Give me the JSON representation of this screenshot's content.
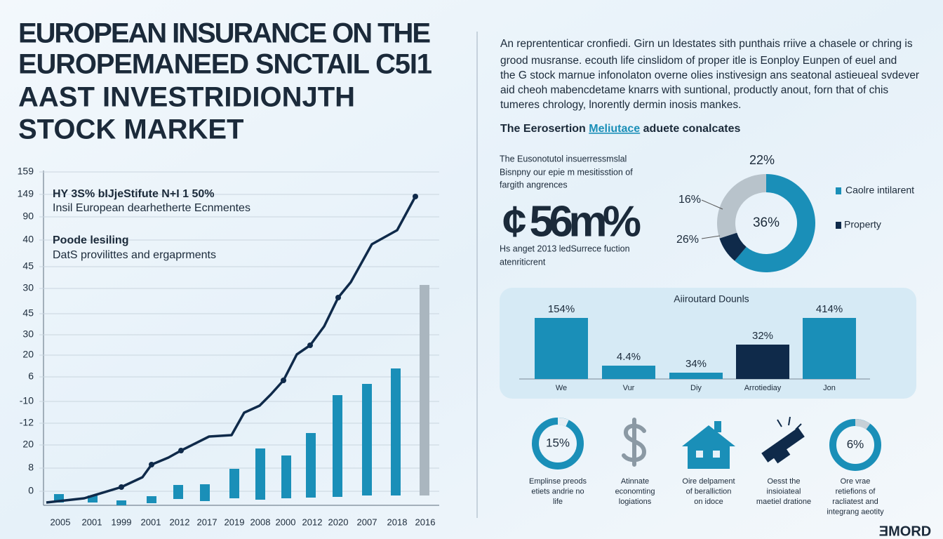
{
  "title": [
    "EUROPEAN INSURANCE ON THE",
    "EUROPEMANEED SNCTAIL C5I1",
    "AAST INVESTRIDIONJTH",
    "STOCK MARKET"
  ],
  "line_chart": {
    "y_labels": [
      159,
      149,
      90,
      40,
      45,
      30,
      45,
      30,
      20,
      6,
      -10,
      -12,
      20,
      8,
      0
    ],
    "x_labels": [
      "2005",
      "2001",
      "1999",
      "2001",
      "2012",
      "2017",
      "2019",
      "2008",
      "2000",
      "2012",
      "2020",
      "2007",
      "2018",
      "2016"
    ],
    "annotation_headline": "HY 3S% bIJjeStifute N+I 1 50%",
    "annotation_text": "Insil European dearhetherte Ecnmentes",
    "note_headline": "Poode lesiling",
    "note_text": "DatS provilittes and ergaprments"
  },
  "intro": {
    "paragraph": [
      "An reprententicar cronfiedi. Girn un ldestates sith punthais rriive a chasele or chring is",
      "grood musranse. ecouth life cinslidom of proper itle is Eonploy Eunpen of euel and",
      "the G stock marnue infonolaton overne olies instivesign ans seatonal astieueal svdever",
      "aid cheoh mabencdetame knarrs with suntional, productly anout, forn that of chis",
      "tumeres chrology, lnorently dermin inosis mankes."
    ],
    "heading_before": "The Eerosertion",
    "heading_link": "Meliutace",
    "heading_after": "aduete conalcates"
  },
  "highlight": {
    "lines_top": [
      "The Eusonotutol insuerressmslal",
      "Bisnpny our epie m mesitisstion of",
      "fargith angrences"
    ],
    "figure": "¢ 56m%",
    "lines_bottom": [
      "Hs anget 2013 ledSurrece fuction",
      "atenriticrent"
    ]
  },
  "donut": {
    "labels": [
      "22%",
      "16%",
      "26%"
    ],
    "center": "36%",
    "legend": [
      "Caolre intilarent",
      "Property"
    ]
  },
  "bar_panel": {
    "title": "Aiiroutard Dounls",
    "value_labels": [
      "154%",
      "4.4%",
      "34%",
      "32%",
      "414%"
    ],
    "categories": [
      "We",
      "Vur",
      "Diy",
      "Arrotiediay",
      "Jon"
    ]
  },
  "icons": [
    {
      "value": "15%",
      "caption": [
        "Emplinse preods",
        "etiets andrie no",
        "life"
      ]
    },
    {
      "caption": [
        "Atinnate",
        "economting",
        "logiations"
      ]
    },
    {
      "caption": [
        "Oire delpament",
        "of beralliction",
        "on idoce"
      ]
    },
    {
      "caption": [
        "Oesst the",
        "insioiateal",
        "maetiel dratione"
      ]
    },
    {
      "value": "6%",
      "caption": [
        "Ore vrae",
        "retiefions of",
        "racliatest and",
        "integrang aeotity"
      ]
    }
  ],
  "logo": "ƎMORD"
}
